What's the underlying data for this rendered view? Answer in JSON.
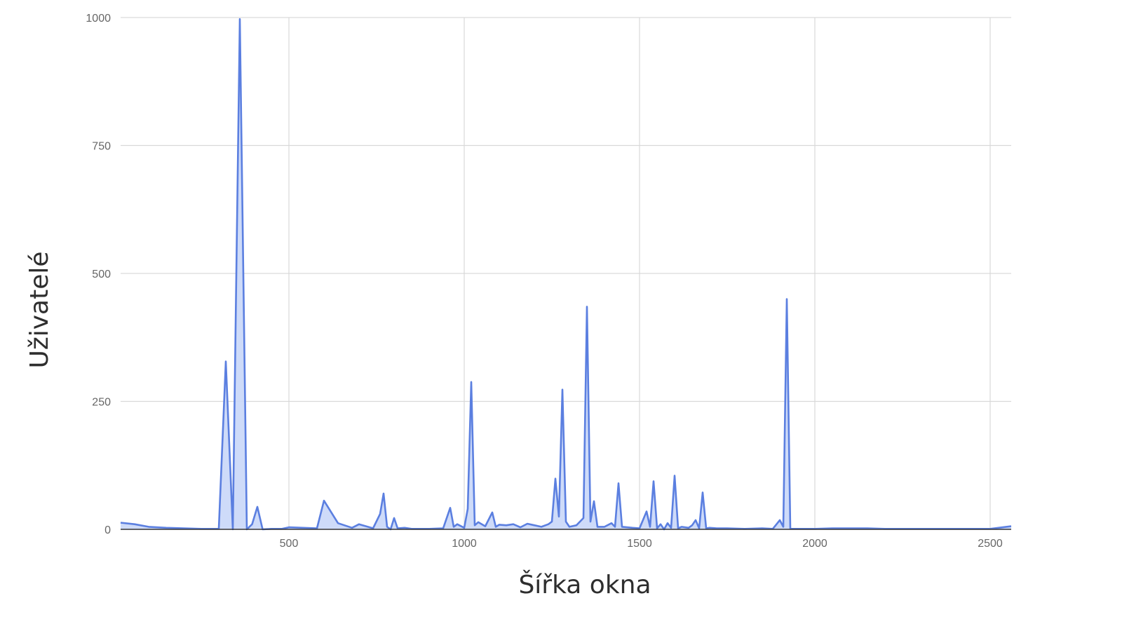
{
  "chart_data": {
    "type": "area",
    "title": "",
    "xlabel": "Šířka okna",
    "ylabel": "Uživatelé",
    "xlim": [
      20,
      2560
    ],
    "ylim": [
      0,
      1000
    ],
    "x_ticks": [
      500,
      1000,
      1500,
      2000,
      2500
    ],
    "y_ticks": [
      0,
      250,
      500,
      750,
      1000
    ],
    "grid": true,
    "legend": "none",
    "colors": {
      "line": "#5b7fe0",
      "fill": "#c9d7f8",
      "grid": "#d9d9d9",
      "axis": "#333333"
    },
    "series": [
      {
        "x": [
          20,
          60,
          100,
          150,
          200,
          250,
          300,
          320,
          340,
          360,
          380,
          395,
          410,
          425,
          450,
          480,
          500,
          540,
          580,
          600,
          640,
          680,
          700,
          740,
          760,
          770,
          780,
          790,
          800,
          810,
          830,
          850,
          900,
          940,
          960,
          970,
          980,
          1000,
          1010,
          1020,
          1030,
          1040,
          1060,
          1080,
          1090,
          1100,
          1120,
          1140,
          1160,
          1180,
          1200,
          1220,
          1240,
          1250,
          1260,
          1270,
          1280,
          1290,
          1300,
          1320,
          1340,
          1350,
          1360,
          1370,
          1380,
          1400,
          1420,
          1430,
          1440,
          1450,
          1480,
          1500,
          1520,
          1530,
          1540,
          1550,
          1560,
          1570,
          1580,
          1590,
          1600,
          1610,
          1620,
          1640,
          1650,
          1660,
          1670,
          1680,
          1690,
          1700,
          1720,
          1750,
          1800,
          1850,
          1880,
          1900,
          1910,
          1920,
          1930,
          1950,
          2000,
          2050,
          2100,
          2150,
          2200,
          2300,
          2400,
          2500,
          2560
        ],
        "values": [
          13,
          10,
          5,
          3,
          2,
          1,
          1,
          328,
          0,
          997,
          0,
          10,
          44,
          0,
          1,
          1,
          4,
          3,
          2,
          56,
          12,
          3,
          10,
          2,
          30,
          70,
          5,
          0,
          22,
          2,
          3,
          1,
          1,
          2,
          42,
          5,
          10,
          3,
          40,
          288,
          8,
          14,
          6,
          33,
          5,
          9,
          8,
          10,
          4,
          11,
          8,
          5,
          10,
          15,
          99,
          25,
          273,
          15,
          5,
          8,
          22,
          435,
          15,
          55,
          5,
          5,
          12,
          5,
          90,
          5,
          3,
          2,
          35,
          5,
          94,
          2,
          10,
          0,
          12,
          3,
          105,
          2,
          5,
          3,
          8,
          18,
          2,
          72,
          2,
          3,
          2,
          2,
          1,
          2,
          1,
          18,
          5,
          450,
          1,
          1,
          1,
          2,
          2,
          2,
          1,
          1,
          1,
          1,
          6
        ]
      }
    ]
  }
}
